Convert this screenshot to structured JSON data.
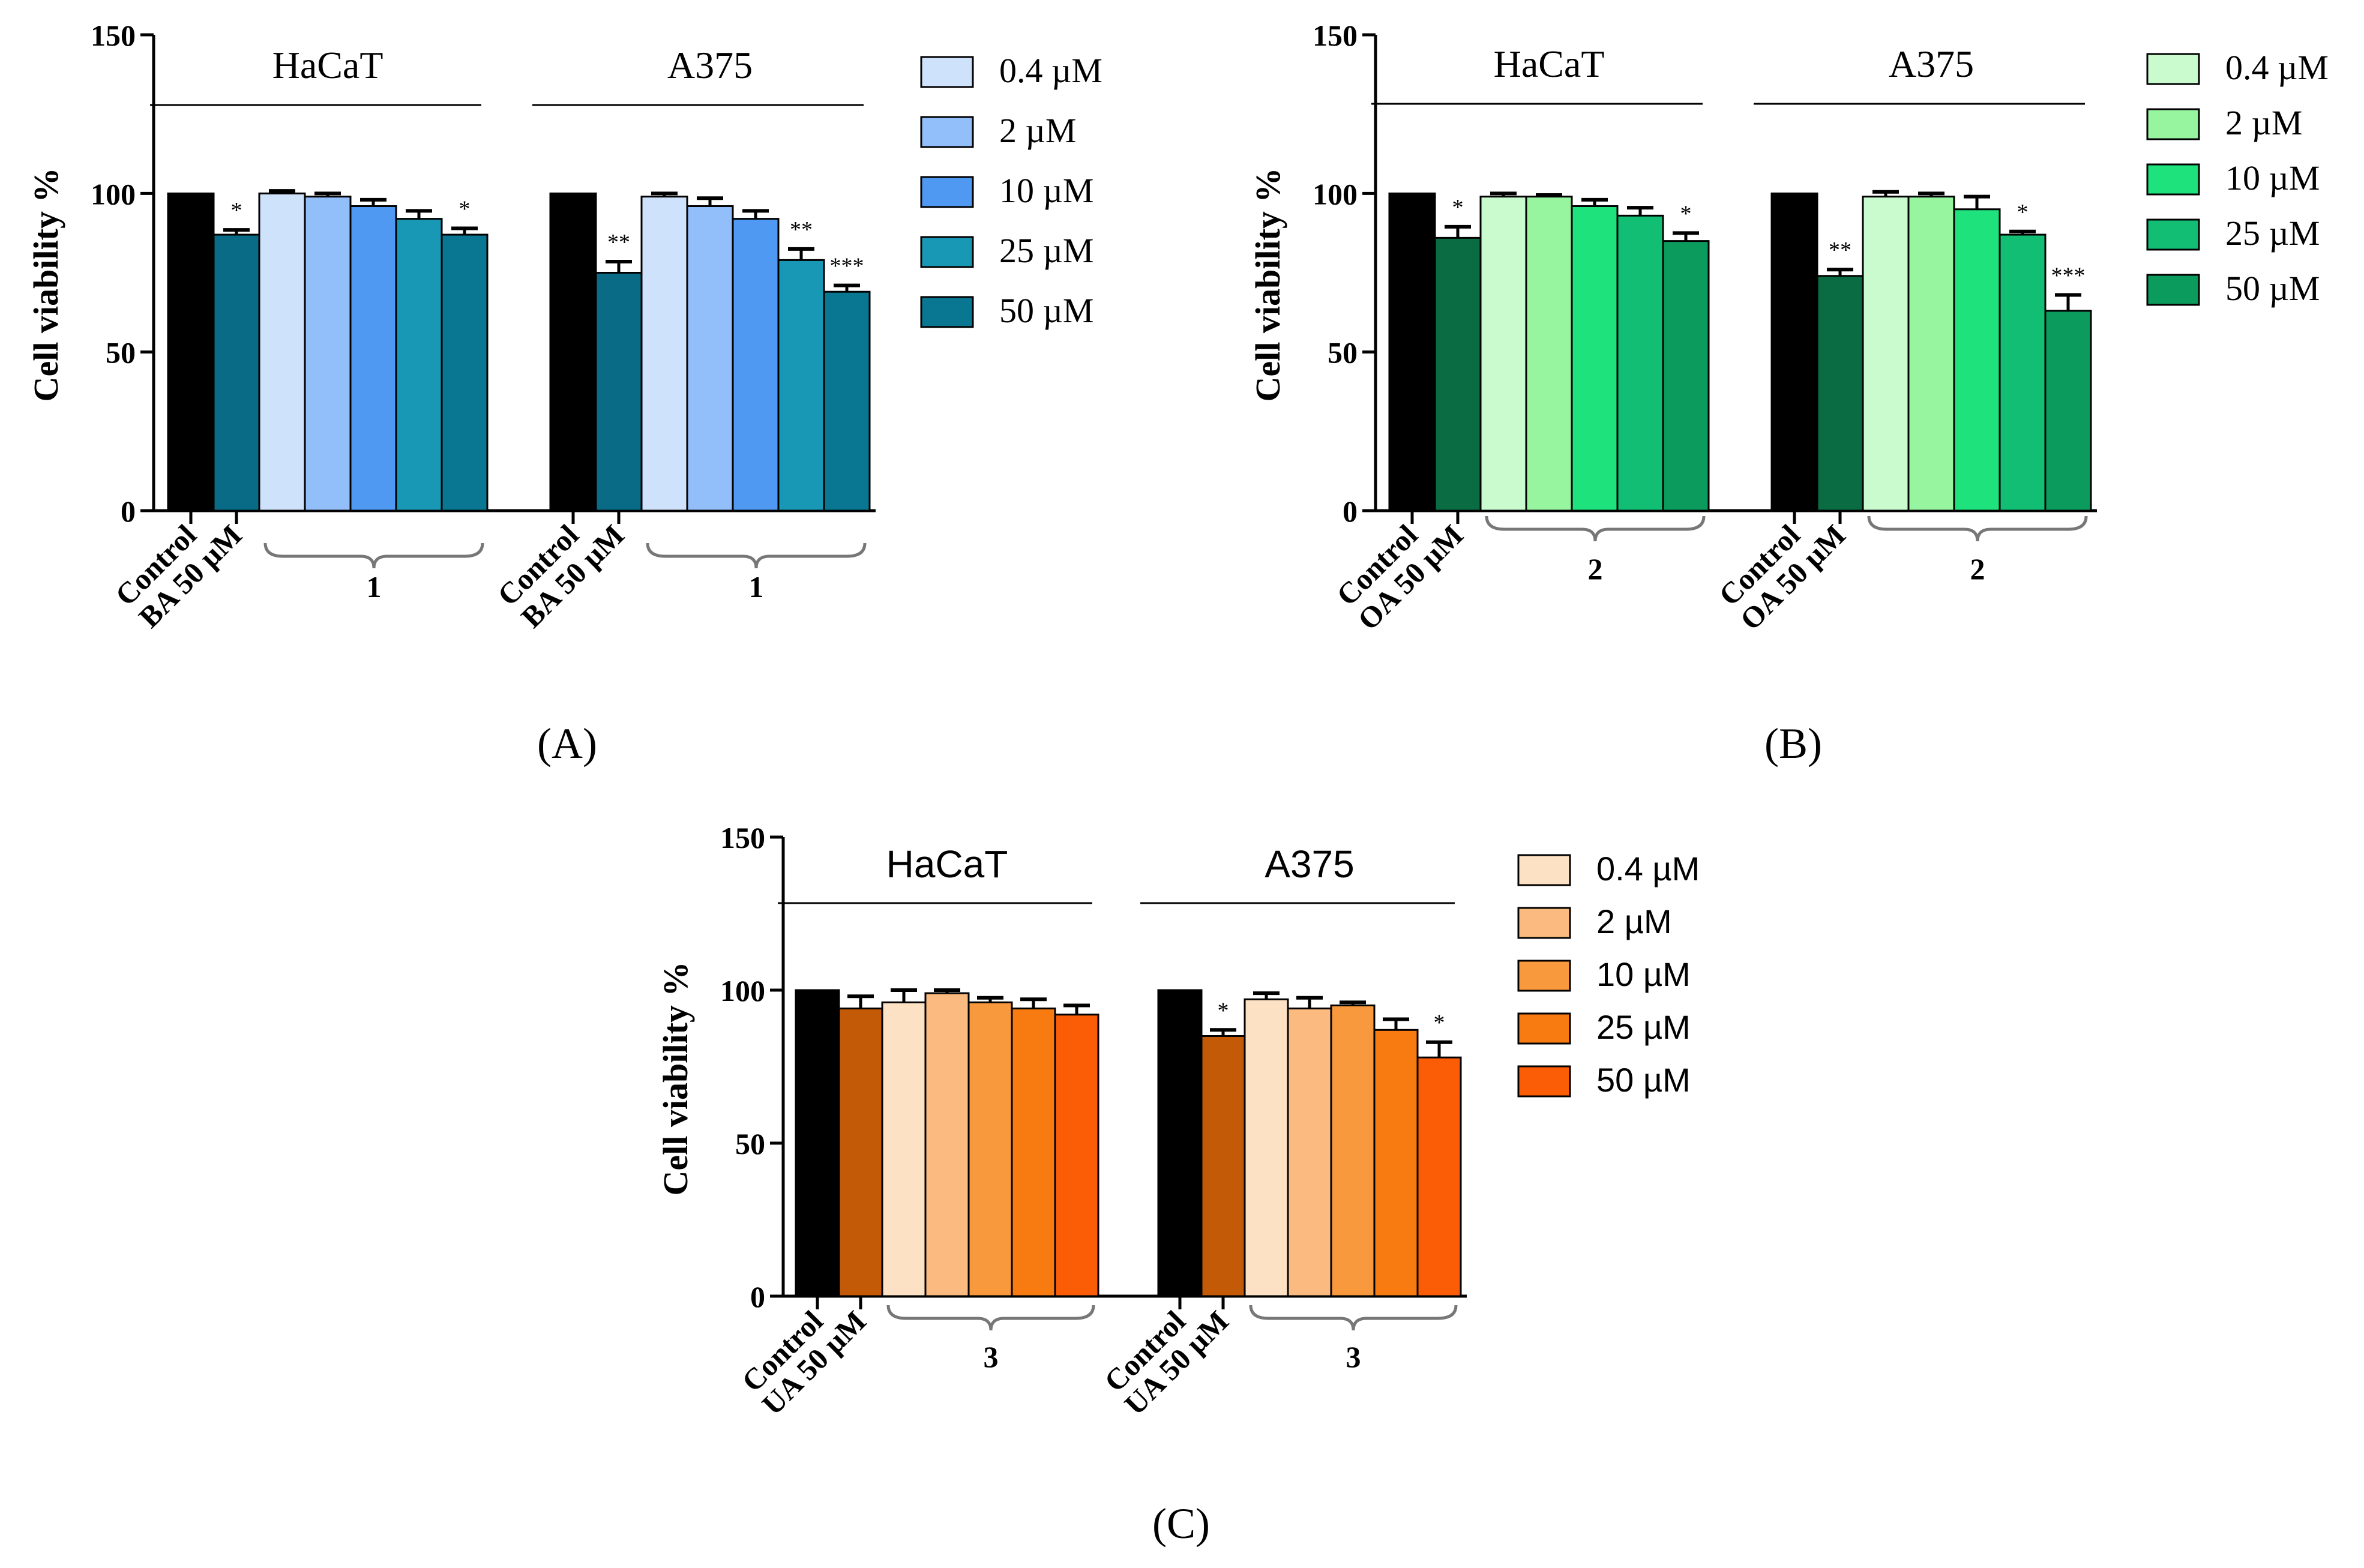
{
  "chart_data": [
    {
      "type": "bar",
      "panel_label": "(A)",
      "ylabel": "Cell viability %",
      "ylim": [
        0,
        150
      ],
      "yticks": [
        "0",
        "50",
        "100",
        "150"
      ],
      "group_titles": [
        "HaCaT",
        "A375"
      ],
      "xtick_labels": [
        "Control",
        "BA 50 µM"
      ],
      "bracket_label": "1",
      "legend": [
        "0.4 µM",
        "2 µM",
        "10 µM",
        "25 µM",
        "50 µM"
      ],
      "legend_colors": [
        "#cfe2fb",
        "#92befa",
        "#4f99f2",
        "#1898b4",
        "#0a7792"
      ],
      "control_color": "#000000",
      "ref_color": "#0a6b86",
      "groups": [
        {
          "name": "HaCaT",
          "values": [
            100,
            87,
            100,
            99,
            96,
            92,
            87
          ],
          "errors": [
            0,
            1.5,
            0.8,
            1,
            2,
            2.5,
            2
          ],
          "sig": [
            "",
            "*",
            "",
            "",
            "",
            "",
            "*"
          ]
        },
        {
          "name": "A375",
          "values": [
            100,
            75,
            99,
            96,
            92,
            79,
            69
          ],
          "errors": [
            0,
            3.5,
            1,
            2.5,
            2.5,
            3.5,
            2
          ],
          "sig": [
            "",
            "**",
            "",
            "",
            "",
            "**",
            "***"
          ]
        }
      ]
    },
    {
      "type": "bar",
      "panel_label": "(B)",
      "ylabel": "Cell viability %",
      "ylim": [
        0,
        150
      ],
      "yticks": [
        "0",
        "50",
        "100",
        "150"
      ],
      "group_titles": [
        "HaCaT",
        "A375"
      ],
      "xtick_labels": [
        "Control",
        "OA 50 µM"
      ],
      "bracket_label": "2",
      "legend": [
        "0.4 µM",
        "2 µM",
        "10 µM",
        "25 µM",
        "50 µM"
      ],
      "legend_colors": [
        "#c9fbcf",
        "#98f59f",
        "#1ee27c",
        "#12be74",
        "#0b9b5d"
      ],
      "control_color": "#000000",
      "ref_color": "#096c42",
      "groups": [
        {
          "name": "HaCaT",
          "values": [
            100,
            86,
            99,
            99,
            96,
            93,
            85
          ],
          "errors": [
            0,
            3.5,
            1,
            0.5,
            2,
            2.5,
            2.5
          ],
          "sig": [
            "",
            "*",
            "",
            "",
            "",
            "",
            "*"
          ]
        },
        {
          "name": "A375",
          "values": [
            100,
            74,
            99,
            99,
            95,
            87,
            63
          ],
          "errors": [
            0,
            2,
            1.5,
            1,
            4,
            1,
            5
          ],
          "sig": [
            "",
            "**",
            "",
            "",
            "",
            "*",
            "***"
          ]
        }
      ]
    },
    {
      "type": "bar",
      "panel_label": "(C)",
      "ylabel": "Cell viability %",
      "ylim": [
        0,
        150
      ],
      "yticks": [
        "0",
        "50",
        "100",
        "150"
      ],
      "group_titles": [
        "HaCaT",
        "A375"
      ],
      "xtick_labels": [
        "Control",
        "UA 50 µM"
      ],
      "bracket_label": "3",
      "legend": [
        "0.4 µM",
        "2 µM",
        "10 µM",
        "25 µM",
        "50 µM"
      ],
      "legend_colors": [
        "#fde1c4",
        "#fbba80",
        "#f9993d",
        "#f87b12",
        "#fb5c06"
      ],
      "control_color": "#000000",
      "ref_color": "#c25a08",
      "groups": [
        {
          "name": "HaCaT",
          "values": [
            100,
            94,
            96,
            99,
            96,
            94,
            92
          ],
          "errors": [
            0,
            4,
            4,
            1,
            1.5,
            3,
            3
          ],
          "sig": [
            "",
            "",
            "",
            "",
            "",
            "",
            ""
          ]
        },
        {
          "name": "A375",
          "values": [
            100,
            85,
            97,
            94,
            95,
            87,
            78
          ],
          "errors": [
            0,
            2,
            2,
            3.5,
            1,
            3.5,
            5
          ],
          "sig": [
            "",
            "*",
            "",
            "",
            "",
            "",
            "*"
          ]
        }
      ]
    }
  ]
}
